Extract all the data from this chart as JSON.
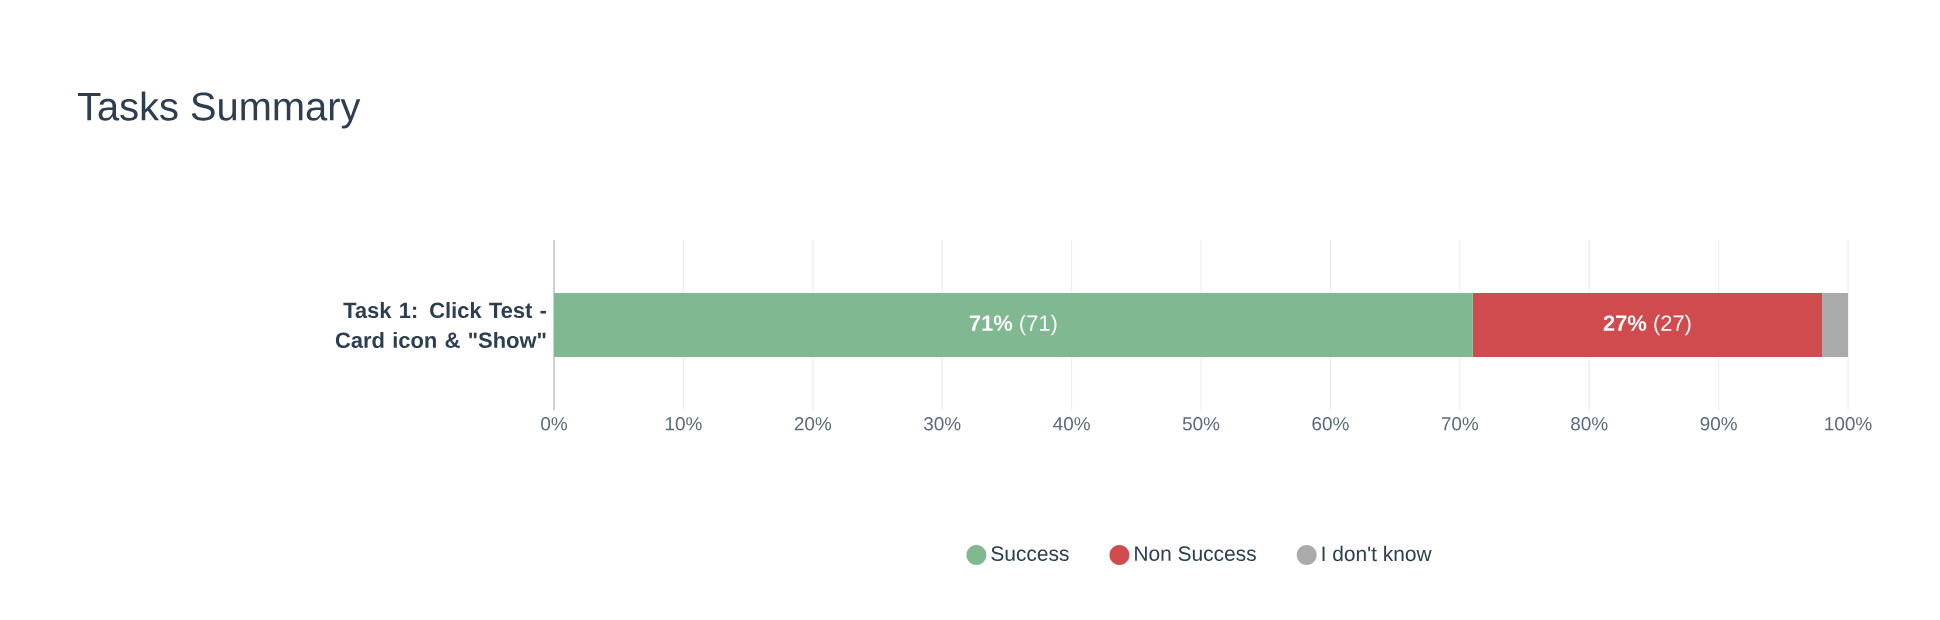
{
  "chart_data": {
    "type": "bar",
    "title": "Tasks Summary",
    "orientation": "horizontal",
    "stacked": true,
    "categories": [
      "Task 1: Click Test - Card icon & \"Show\""
    ],
    "series": [
      {
        "name": "Success",
        "color": "#7fb891",
        "values": [
          71
        ],
        "value_labels": [
          "**71%** (71)"
        ]
      },
      {
        "name": "Non Success",
        "color": "#cf4b4d",
        "values": [
          27
        ],
        "value_labels": [
          "**27%** (27)"
        ]
      },
      {
        "name": "I don't know",
        "color": "#aaaaaa",
        "values": [
          2
        ],
        "value_labels": [
          null
        ]
      }
    ],
    "xlim": [
      0,
      100
    ],
    "xticks": [
      {
        "value": 0,
        "label": "0%"
      },
      {
        "value": 10,
        "label": "10%"
      },
      {
        "value": 20,
        "label": "20%"
      },
      {
        "value": 30,
        "label": "30%"
      },
      {
        "value": 40,
        "label": "40%"
      },
      {
        "value": 50,
        "label": "50%"
      },
      {
        "value": 60,
        "label": "60%"
      },
      {
        "value": 70,
        "label": "70%"
      },
      {
        "value": 80,
        "label": "80%"
      },
      {
        "value": 90,
        "label": "90%"
      },
      {
        "value": 100,
        "label": "100%"
      }
    ],
    "grid": "x",
    "legend": "bottom"
  }
}
